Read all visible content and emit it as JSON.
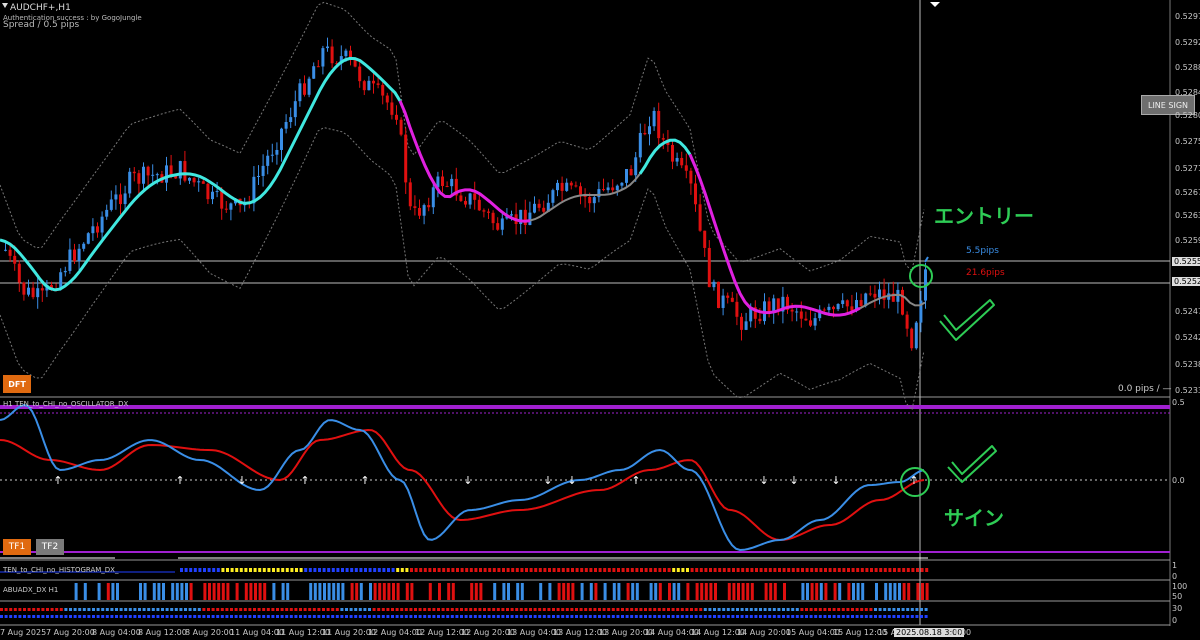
{
  "header": {
    "symbol": "AUDCHF+,H1",
    "auth": "Authentication success : by GogoJungle",
    "spread": "Spread / 0.5 pips"
  },
  "buttons": {
    "line_sign": "LINE SIGN",
    "tf1": "TF1",
    "tf2": "TF2",
    "dft": "DFT"
  },
  "price_axis": [
    "0.52975",
    "0.52920",
    "0.52880",
    "0.52840",
    "0.52800",
    "0.52755",
    "0.52710",
    "0.52670",
    "0.52630",
    "0.52590",
    "0.52556",
    "0.52520",
    "0.52470",
    "0.52425",
    "0.52380",
    "0.52335"
  ],
  "info": {
    "pips_top": "5.5pips",
    "pips_bottom": "21.6pips",
    "pips_zero": "0.0 pips / —"
  },
  "indicators": {
    "osc_title": "H1 TEN_to_CHI_no_OSCILLATOR_DX",
    "hist_title": "TEN_to_CHI_no_HISTOGRAM_DX_",
    "abu_title": "ABUADX_DX H1",
    "osc_top": "0.5",
    "osc_mid": "0.0",
    "hist_ticks": [
      "1",
      "0"
    ],
    "abu_ticks": [
      "100",
      "50"
    ],
    "bottom_ticks": [
      "30",
      "0"
    ]
  },
  "time_axis": [
    "7 Aug 2025",
    "7 Aug 20:00",
    "8 Aug 04:00",
    "8 Aug 12:00",
    "8 Aug 20:00",
    "11 Aug 04:00",
    "11 Aug 12:00",
    "11 Aug 20:00",
    "12 Aug 04:00",
    "12 Aug 12:00",
    "12 Aug 20:00",
    "13 Aug 04:00",
    "13 Aug 12:00",
    "13 Aug 20:00",
    "14 Aug 04:00",
    "14 Aug 12:00",
    "14 Aug 20:00",
    "15 Aug 04:00",
    "15 Aug 12:00",
    "15 A",
    "2025.08.18 3:00",
    "04:00"
  ],
  "annotations": {
    "entry": "エントリー",
    "sign": "サイン"
  },
  "colors": {
    "bull": "#3a8ee6",
    "bear": "#e01010",
    "ma_cyan": "#40e8e0",
    "ma_magenta": "#e020e0",
    "osc_blue": "#3a8ee6",
    "osc_red": "#e01010",
    "annotation_green": "#2ecc55",
    "separator_purple": "#a020d0"
  }
}
